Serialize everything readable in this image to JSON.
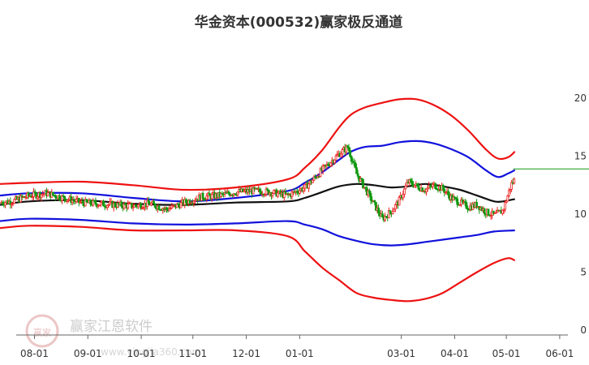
{
  "chart_data": {
    "type": "line",
    "title": "华金资本(000532)赢家极反通道",
    "ylim": [
      0,
      20
    ],
    "y_ticks": [
      "0",
      "5",
      "10",
      "15",
      "20"
    ],
    "x_ticks": [
      {
        "label": "08-01",
        "x": 3
      },
      {
        "label": "09-01",
        "x": 34
      },
      {
        "label": "10-01",
        "x": 65
      },
      {
        "label": "11-01",
        "x": 95
      },
      {
        "label": "12-01",
        "x": 126
      },
      {
        "label": "01-01",
        "x": 157
      },
      {
        "label": "03-01",
        "x": 216
      },
      {
        "label": "04-01",
        "x": 247
      },
      {
        "label": "05-01",
        "x": 277
      },
      {
        "label": "06-01",
        "x": 308
      }
    ],
    "x_range": [
      -17,
      325
    ],
    "grid": false,
    "legend": "none",
    "colors": {
      "outer": "#ee1111",
      "inner": "#1111dd",
      "mid": "#111111",
      "up": "#ee2222",
      "down": "#119911",
      "hline": "#119911"
    },
    "reference_line": {
      "y": 13.9,
      "x_start": 281,
      "x_end": 325
    },
    "series": [
      {
        "role": "outer-upper",
        "x": [
          -17,
          0,
          30,
          60,
          90,
          120,
          150,
          160,
          170,
          180,
          187,
          195,
          205,
          215,
          225,
          235,
          245,
          255,
          265,
          272,
          278,
          282
        ],
        "y": [
          12.6,
          12.7,
          12.8,
          12.5,
          12.1,
          12.3,
          13.0,
          14.0,
          15.5,
          17.5,
          18.6,
          19.2,
          19.6,
          19.9,
          19.9,
          19.4,
          18.5,
          17.2,
          15.6,
          14.8,
          14.9,
          15.4
        ]
      },
      {
        "role": "inner-upper",
        "x": [
          -17,
          0,
          30,
          60,
          90,
          120,
          150,
          160,
          170,
          180,
          187,
          195,
          205,
          215,
          225,
          235,
          245,
          255,
          265,
          272,
          278,
          282
        ],
        "y": [
          11.6,
          11.8,
          11.8,
          11.4,
          11.1,
          11.4,
          12.0,
          12.7,
          13.6,
          14.7,
          15.4,
          15.8,
          15.9,
          16.2,
          16.3,
          16.1,
          15.6,
          14.9,
          13.8,
          13.2,
          13.5,
          13.8
        ]
      },
      {
        "role": "middle",
        "x": [
          -17,
          0,
          30,
          60,
          90,
          120,
          150,
          160,
          170,
          180,
          190,
          200,
          210,
          220,
          230,
          240,
          250,
          260,
          270,
          275,
          282
        ],
        "y": [
          10.8,
          11.1,
          11.2,
          10.9,
          10.8,
          11.0,
          11.1,
          11.4,
          11.9,
          12.4,
          12.6,
          12.5,
          12.3,
          12.4,
          12.6,
          12.4,
          12.1,
          11.6,
          11.1,
          11.1,
          11.3
        ]
      },
      {
        "role": "inner-lower",
        "x": [
          -17,
          0,
          30,
          60,
          90,
          120,
          150,
          160,
          170,
          180,
          190,
          200,
          210,
          220,
          230,
          240,
          250,
          260,
          270,
          282
        ],
        "y": [
          9.4,
          9.6,
          9.5,
          9.2,
          9.1,
          9.2,
          9.4,
          9.1,
          8.7,
          8.1,
          7.7,
          7.4,
          7.3,
          7.4,
          7.6,
          7.8,
          8.0,
          8.2,
          8.5,
          8.6
        ]
      },
      {
        "role": "outer-lower",
        "x": [
          -17,
          0,
          30,
          60,
          90,
          120,
          150,
          160,
          170,
          180,
          190,
          200,
          210,
          220,
          230,
          240,
          250,
          260,
          270,
          278,
          282
        ],
        "y": [
          8.8,
          9.0,
          8.9,
          8.6,
          8.6,
          8.6,
          8.1,
          6.8,
          5.4,
          4.3,
          3.2,
          2.8,
          2.6,
          2.5,
          2.7,
          3.2,
          4.1,
          5.0,
          5.8,
          6.2,
          6.0
        ]
      },
      {
        "role": "price",
        "x": [
          -17,
          -10,
          0,
          10,
          20,
          30,
          40,
          50,
          60,
          70,
          80,
          90,
          100,
          110,
          120,
          130,
          140,
          150,
          160,
          165,
          170,
          175,
          180,
          185,
          190,
          195,
          200,
          205,
          210,
          215,
          220,
          225,
          230,
          235,
          240,
          245,
          250,
          255,
          260,
          265,
          270,
          275,
          280,
          282
        ],
        "y": [
          11.0,
          11.1,
          11.6,
          11.8,
          11.4,
          11.0,
          10.9,
          10.8,
          10.7,
          10.9,
          10.4,
          11.0,
          11.5,
          11.6,
          11.9,
          12.0,
          11.9,
          11.6,
          12.3,
          13.0,
          13.8,
          14.5,
          15.2,
          15.8,
          13.5,
          12.2,
          10.9,
          9.6,
          10.2,
          11.2,
          12.8,
          12.4,
          12.1,
          12.5,
          12.2,
          11.4,
          11.0,
          10.6,
          10.8,
          10.2,
          9.9,
          10.3,
          12.6,
          13.0
        ]
      }
    ]
  },
  "watermark": {
    "name": "赢家江恩软件",
    "url": "www.yingjia360.com",
    "logo_glyph": "赢家"
  }
}
